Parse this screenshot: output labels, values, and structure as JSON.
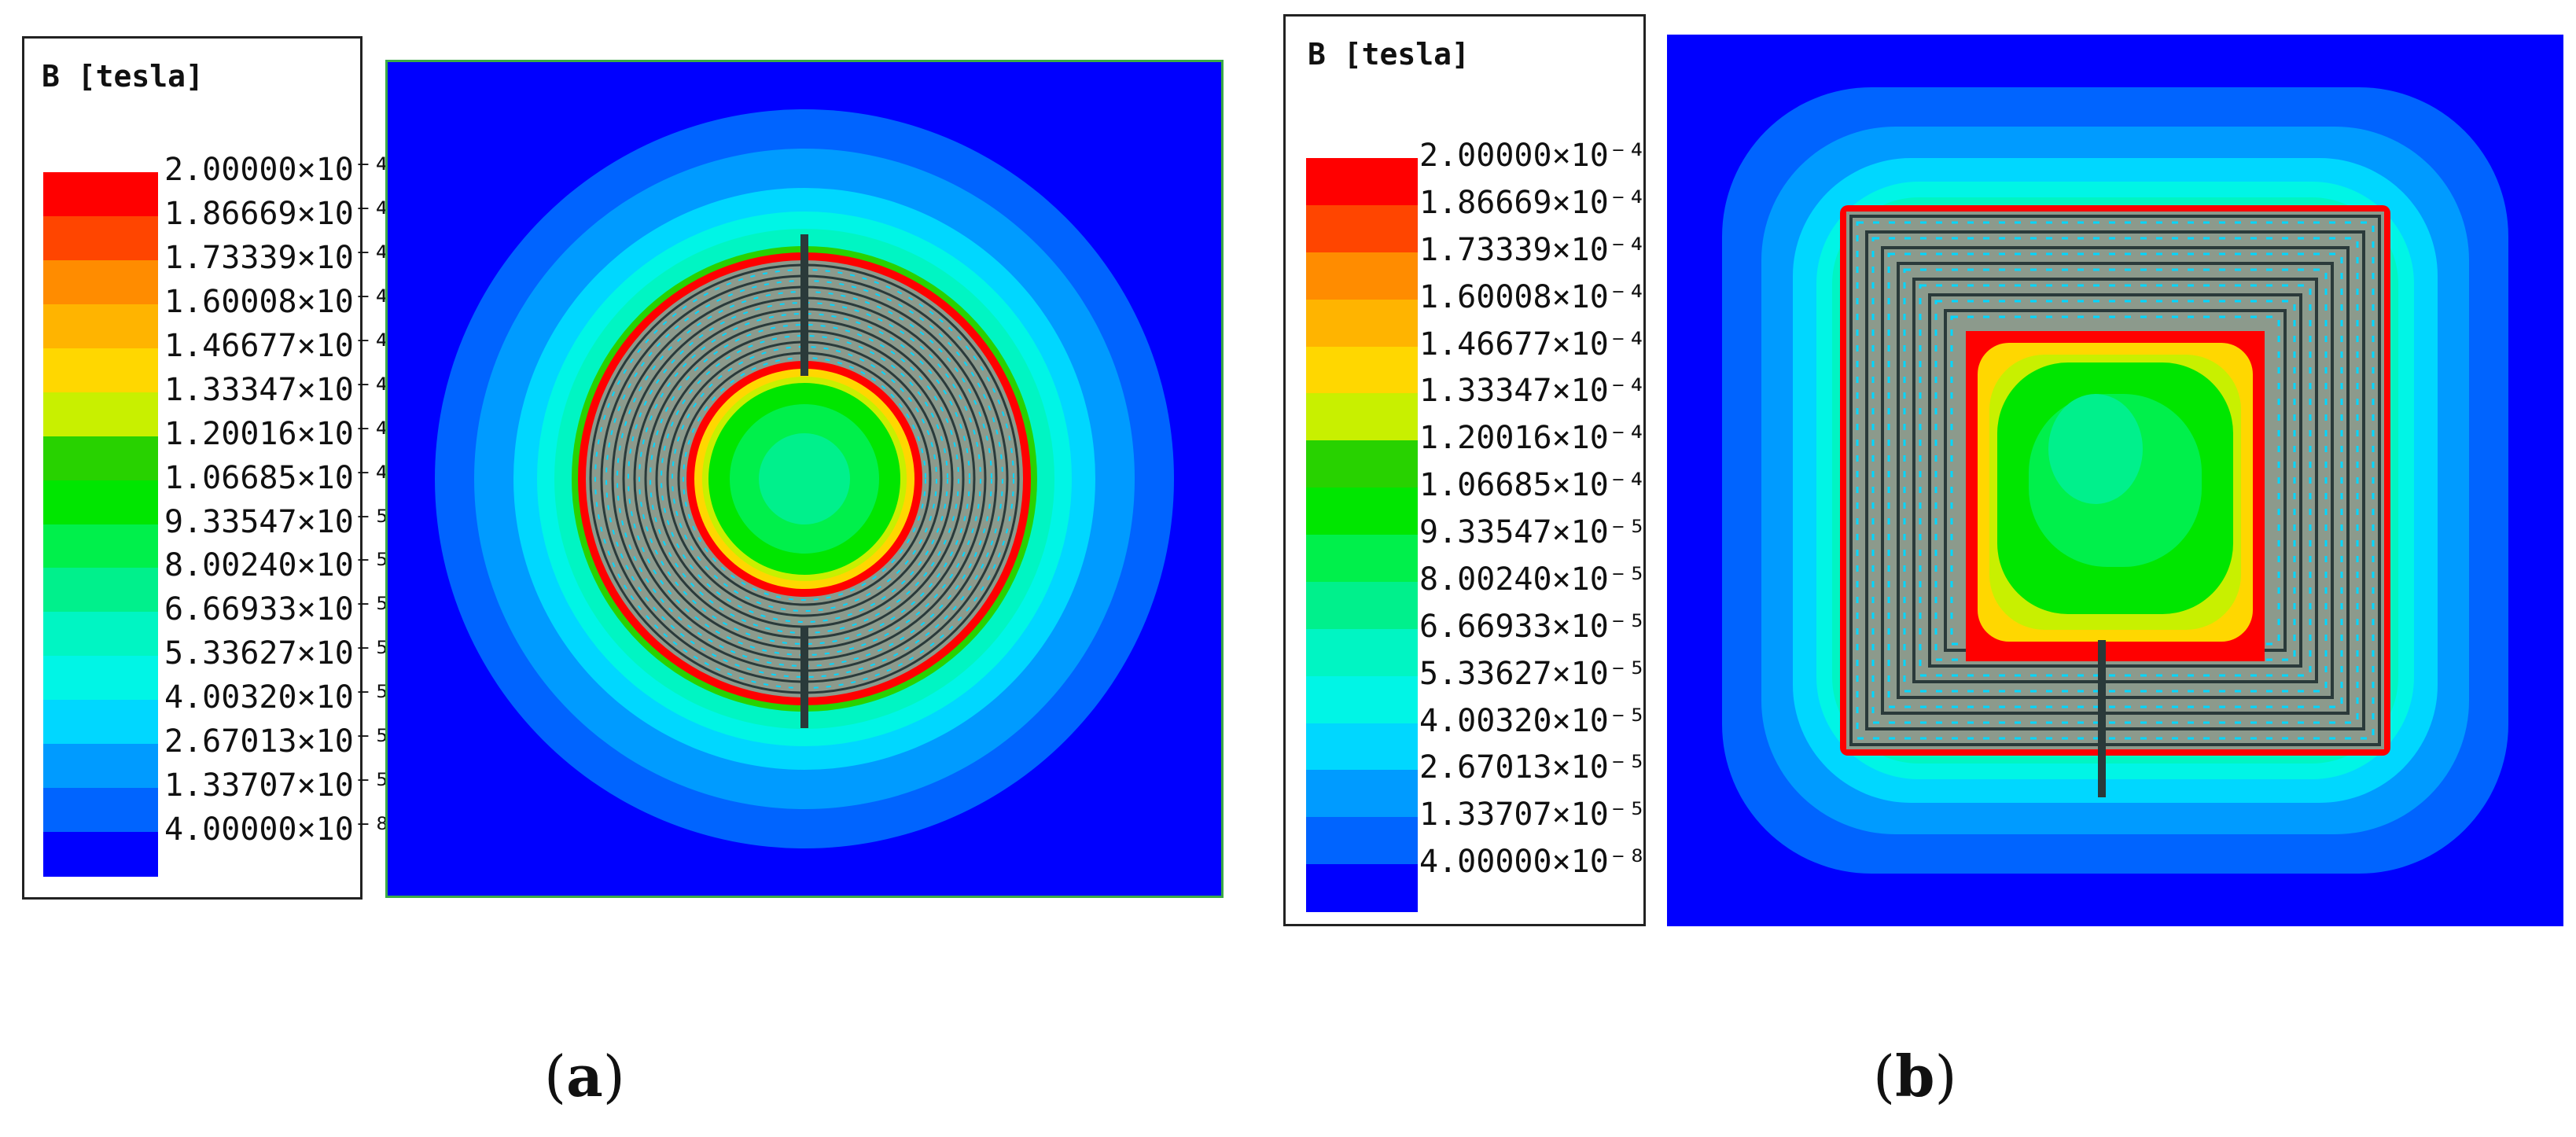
{
  "panels": [
    {
      "caption_letter": "a",
      "shape": "circle"
    },
    {
      "caption_letter": "b",
      "shape": "square"
    }
  ],
  "legend": {
    "title": "B [tesla]",
    "levels": [
      {
        "label": "2.00000×10⁻⁴",
        "color": "#ff0000"
      },
      {
        "label": "1.86669×10⁻⁴",
        "color": "#ff4500"
      },
      {
        "label": "1.73339×10⁻⁴",
        "color": "#ff8c00"
      },
      {
        "label": "1.60008×10⁻⁴",
        "color": "#ffb400"
      },
      {
        "label": "1.46677×10⁻⁴",
        "color": "#ffd700"
      },
      {
        "label": "1.33347×10⁻⁴",
        "color": "#c8f000"
      },
      {
        "label": "1.20016×10⁻⁴",
        "color": "#28d200"
      },
      {
        "label": "1.06685×10⁻⁴",
        "color": "#00e600"
      },
      {
        "label": "9.33547×10⁻⁵",
        "color": "#00f04b"
      },
      {
        "label": "8.00240×10⁻⁵",
        "color": "#00f08c"
      },
      {
        "label": "6.66933×10⁻⁵",
        "color": "#00f5c3"
      },
      {
        "label": "5.33627×10⁻⁵",
        "color": "#00f5e6"
      },
      {
        "label": "4.00320×10⁻⁵",
        "color": "#00d7ff"
      },
      {
        "label": "2.67013×10⁻⁵",
        "color": "#009bff"
      },
      {
        "label": "1.33707×10⁻⁵",
        "color": "#0064ff"
      },
      {
        "label": "4.00000×10⁻⁸",
        "color": "#0000ff"
      }
    ]
  },
  "colors": {
    "coil_gray": "#8c9a8c",
    "plot_border": "#3caa46"
  }
}
